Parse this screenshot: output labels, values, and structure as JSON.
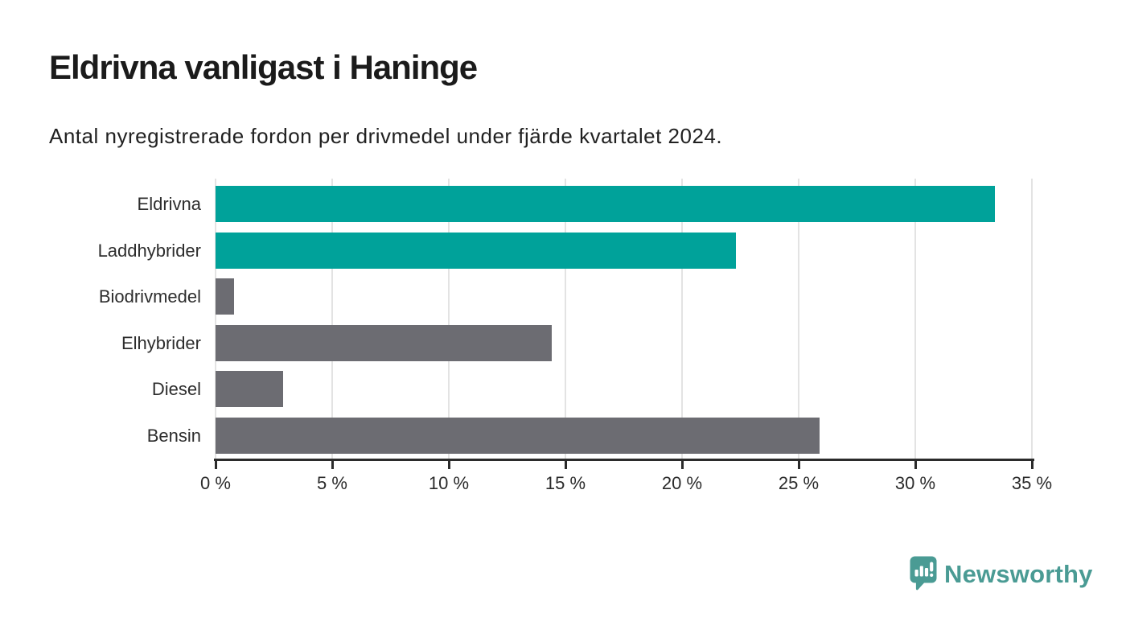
{
  "page": {
    "background_color": "#ffffff"
  },
  "chart_data": {
    "type": "bar",
    "orientation": "horizontal",
    "title": "Eldrivna vanligast i Haninge",
    "subtitle": "Antal nyregistrerade fordon per drivmedel under fjärde kvartalet 2024.",
    "categories": [
      "Eldrivna",
      "Laddhybrider",
      "Biodrivmedel",
      "Elhybrider",
      "Diesel",
      "Bensin"
    ],
    "values": [
      33.4,
      22.3,
      0.8,
      14.4,
      2.9,
      25.9
    ],
    "unit": "%",
    "bar_colors": [
      "#00a29a",
      "#00a29a",
      "#6c6c72",
      "#6c6c72",
      "#6c6c72",
      "#6c6c72"
    ],
    "highlight_color": "#00a29a",
    "default_color": "#6c6c72",
    "xlabel": "",
    "ylabel": "",
    "xlim": [
      0,
      35
    ],
    "x_tick_values": [
      0,
      5,
      10,
      15,
      20,
      25,
      30,
      35
    ],
    "x_tick_labels": [
      "0 %",
      "5 %",
      "10 %",
      "15 %",
      "20 %",
      "25 %",
      "30 %",
      "35 %"
    ],
    "grid": "vertical",
    "gridline_color": "#e3e3e3",
    "axis_color": "#2b2b2b",
    "legend": "none"
  },
  "footer": {
    "brand": "Newsworthy",
    "brand_color": "#4a9b94"
  }
}
